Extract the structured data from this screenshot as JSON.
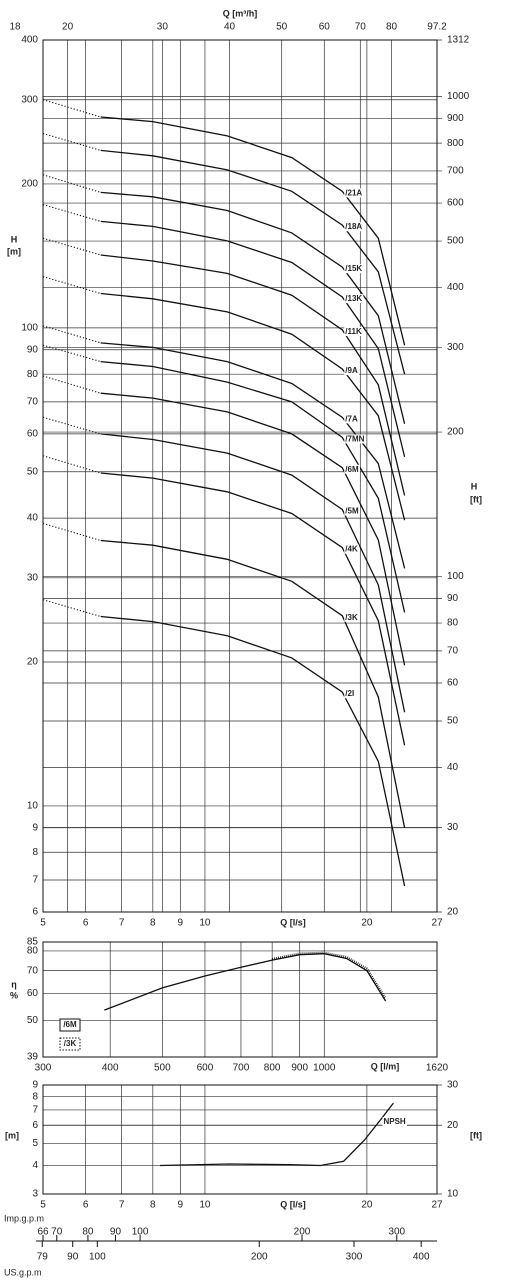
{
  "chart_data": [
    {
      "type": "line",
      "log_x": true,
      "log_y": true,
      "grid": true,
      "color": "#111111",
      "xlabel": "Q [l/s]",
      "x2label": "Q [m³/h]",
      "ylabel": "H",
      "yunit": "[m]",
      "y2label": "H",
      "y2unit": "[ft]",
      "xlim": [
        5,
        27
      ],
      "xticks": [
        5,
        6,
        7,
        8,
        9,
        10,
        20,
        27
      ],
      "x2lim": [
        18,
        97.2
      ],
      "x2ticks": [
        18,
        20,
        30,
        40,
        50,
        60,
        70,
        80,
        97.2
      ],
      "ylim": [
        6,
        400
      ],
      "yticks": [
        6,
        7,
        8,
        9,
        10,
        20,
        30,
        40,
        50,
        60,
        70,
        80,
        90,
        100,
        200,
        300,
        400
      ],
      "y2lim": [
        20,
        1312
      ],
      "y2ticks": [
        20,
        30,
        40,
        50,
        60,
        70,
        80,
        90,
        100,
        200,
        300,
        400,
        500,
        600,
        700,
        800,
        900,
        1000,
        1312
      ],
      "series": [
        {
          "name": "/21A",
          "dotted": {
            "x": [
              5,
              6.4
            ],
            "values": [
              300,
              276
            ]
          },
          "x": [
            6.4,
            8,
            11,
            14.5,
            18,
            21,
            23.5
          ],
          "values": [
            276,
            270,
            252,
            227,
            193,
            154,
            92
          ]
        },
        {
          "name": "/18A",
          "dotted": {
            "x": [
              5,
              6.4
            ],
            "values": [
              255,
              235
            ]
          },
          "x": [
            6.4,
            8,
            11,
            14.5,
            18,
            21,
            23.5
          ],
          "values": [
            235,
            229,
            214,
            193,
            164,
            131,
            80
          ]
        },
        {
          "name": "/15K",
          "dotted": {
            "x": [
              5,
              6.4
            ],
            "values": [
              209,
              192
            ]
          },
          "x": [
            6.4,
            8,
            11,
            14.5,
            18,
            21,
            23.5
          ],
          "values": [
            192,
            188,
            176,
            158,
            134,
            106,
            63
          ]
        },
        {
          "name": "/13K",
          "dotted": {
            "x": [
              5,
              6.4
            ],
            "values": [
              181,
              167
            ]
          },
          "x": [
            6.4,
            8,
            11,
            14.5,
            18,
            21,
            23.5
          ],
          "values": [
            167,
            163,
            152,
            137,
            116,
            90.5,
            53.7
          ]
        },
        {
          "name": "/11K",
          "dotted": {
            "x": [
              5,
              6.4
            ],
            "values": [
              154,
              142
            ]
          },
          "x": [
            6.4,
            8,
            11,
            14.5,
            18,
            21,
            23.5
          ],
          "values": [
            142,
            138,
            130,
            117,
            99,
            76,
            44.6
          ]
        },
        {
          "name": "/9A",
          "dotted": {
            "x": [
              5,
              6.4
            ],
            "values": [
              128,
              118
            ]
          },
          "x": [
            6.4,
            8,
            11,
            14.5,
            18,
            21,
            23.5
          ],
          "values": [
            118,
            115,
            108,
            97,
            82,
            65.5,
            39.6
          ]
        },
        {
          "name": "/7A",
          "dotted": {
            "x": [
              5,
              6.4
            ],
            "values": [
              101,
              93
            ]
          },
          "x": [
            6.4,
            8,
            11,
            14.5,
            18,
            21,
            23.5
          ],
          "values": [
            93,
            91,
            85,
            76.5,
            65,
            52,
            31.4
          ]
        },
        {
          "name": "/7MN",
          "dotted": {
            "x": [
              5,
              6.4
            ],
            "values": [
              92,
              85
            ]
          },
          "x": [
            6.4,
            8,
            11,
            14.5,
            18,
            21,
            23.5
          ],
          "values": [
            85,
            83,
            77,
            70,
            59,
            44,
            25.4
          ]
        },
        {
          "name": "/6M",
          "dotted": {
            "x": [
              5,
              6.4
            ],
            "values": [
              79.3,
              73
            ]
          },
          "x": [
            6.4,
            8,
            11,
            14.5,
            18,
            21,
            23.5
          ],
          "values": [
            73,
            71.3,
            66.7,
            60,
            51,
            36,
            19.7
          ]
        },
        {
          "name": "/5M",
          "dotted": {
            "x": [
              5,
              6.4
            ],
            "values": [
              65,
              60
            ]
          },
          "x": [
            6.4,
            8,
            11,
            14.5,
            18,
            21,
            23.5
          ],
          "values": [
            60,
            58.4,
            54.7,
            49.2,
            41.7,
            29,
            15.7
          ]
        },
        {
          "name": "/4K",
          "dotted": {
            "x": [
              5,
              6.4
            ],
            "values": [
              54,
              49.7
            ]
          },
          "x": [
            6.4,
            8,
            11,
            14.5,
            18,
            21,
            23.5
          ],
          "values": [
            49.7,
            48.5,
            45.4,
            40.9,
            34.7,
            24.4,
            13.4
          ]
        },
        {
          "name": "/3K",
          "dotted": {
            "x": [
              5,
              6.4
            ],
            "values": [
              39,
              35.9
            ]
          },
          "x": [
            6.4,
            8,
            11,
            14.5,
            18,
            21,
            23.5
          ],
          "values": [
            35.9,
            35.1,
            32.8,
            29.5,
            25,
            16.9,
            9
          ]
        },
        {
          "name": "/2I",
          "dotted": {
            "x": [
              5,
              6.4
            ],
            "values": [
              27,
              24.9
            ]
          },
          "x": [
            6.4,
            8,
            11,
            14.5,
            18,
            21,
            23.5
          ],
          "values": [
            24.9,
            24.3,
            22.7,
            20.4,
            17.3,
            12.4,
            6.8
          ]
        }
      ]
    },
    {
      "type": "line",
      "log_x": true,
      "log_y": true,
      "grid": true,
      "color": "#111111",
      "legend": "lower left",
      "xlabel": "Q [l/m]",
      "ylabel": "η",
      "yunit": "%",
      "xlim": [
        300,
        1620
      ],
      "xticks": [
        300,
        400,
        500,
        600,
        700,
        800,
        900,
        1000,
        1620
      ],
      "ylim": [
        39,
        85
      ],
      "yticks": [
        39,
        50,
        60,
        70,
        80,
        85
      ],
      "series": [
        {
          "name": "/6M",
          "style": "solid",
          "x": [
            390,
            500,
            600,
            700,
            800,
            900,
            1000,
            1100,
            1200,
            1300
          ],
          "values": [
            53.6,
            62.3,
            67.5,
            71.6,
            75.2,
            78,
            78.5,
            76,
            70,
            57
          ]
        },
        {
          "name": "/3K",
          "style": "dotted",
          "x": [
            800,
            900,
            1000,
            1100,
            1200,
            1300
          ],
          "values": [
            75.8,
            78.6,
            79,
            76.8,
            71,
            58
          ]
        }
      ]
    },
    {
      "type": "line",
      "log_x": true,
      "log_y": true,
      "grid": true,
      "color": "#111111",
      "xlabel": "Q [l/s]",
      "ylabel": "[m]",
      "y2label": "[ft]",
      "xlim": [
        5,
        27
      ],
      "xticks": [
        5,
        6,
        7,
        8,
        9,
        10,
        20,
        27
      ],
      "ylim": [
        3,
        9
      ],
      "yticks": [
        3,
        4,
        5,
        6,
        7,
        8,
        9
      ],
      "y2lim": [
        10,
        30
      ],
      "y2ticks": [
        10,
        20,
        30
      ],
      "series": [
        {
          "name": "NPSH",
          "x": [
            8.25,
            11.1,
            14.4,
            16.4,
            18.1,
            19.8,
            21.2,
            22.4
          ],
          "values": [
            4.0,
            4.06,
            4.03,
            4.0,
            4.17,
            5.17,
            6.33,
            7.5
          ]
        }
      ]
    },
    {
      "type": "scale",
      "log_x": true,
      "axes": [
        {
          "label": "Imp.g.p.m",
          "lim": [
            66,
            356.4
          ],
          "ticks": [
            66,
            70,
            80,
            90,
            100,
            200,
            300
          ]
        },
        {
          "label": "US.g.p.m",
          "lim": [
            79.25,
            428
          ],
          "ticks": [
            79,
            90,
            100,
            200,
            300,
            400
          ]
        }
      ]
    }
  ]
}
